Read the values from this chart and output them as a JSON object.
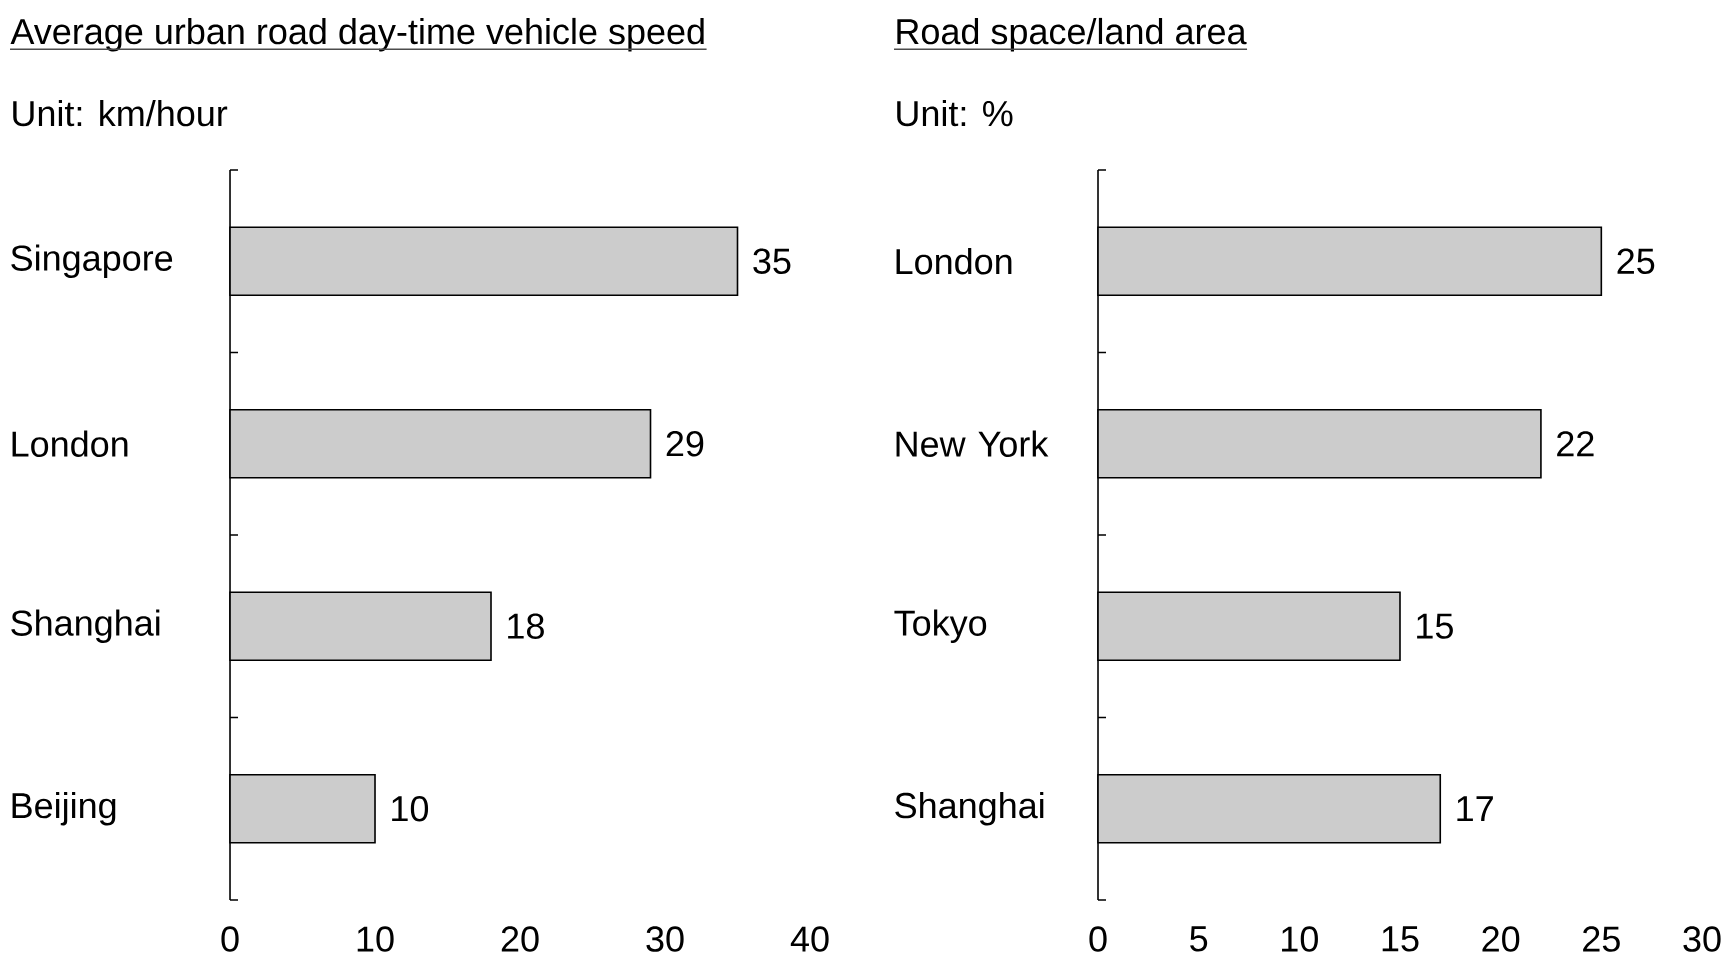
{
  "chart_data": [
    {
      "type": "bar",
      "orientation": "horizontal",
      "title": "Average urban road day-time vehicle speed",
      "subtitle": "Unit: km/hour",
      "categories": [
        "Singapore",
        "London",
        "Shanghai",
        "Beijing"
      ],
      "values": [
        35,
        29,
        18,
        10
      ],
      "color": "#cccccc",
      "xlim": [
        0,
        40
      ],
      "xticks": [
        0,
        10,
        20,
        30,
        40
      ],
      "data_labels": true
    },
    {
      "type": "bar",
      "orientation": "horizontal",
      "title": "Road space/land area",
      "subtitle": "Unit: %",
      "categories": [
        "London",
        "New York",
        "Tokyo",
        "Shanghai"
      ],
      "values": [
        25,
        22,
        15,
        17
      ],
      "color": "#cccccc",
      "xlim": [
        0,
        30
      ],
      "xticks": [
        0,
        5,
        10,
        15,
        20,
        25,
        30
      ],
      "data_labels": true
    }
  ]
}
